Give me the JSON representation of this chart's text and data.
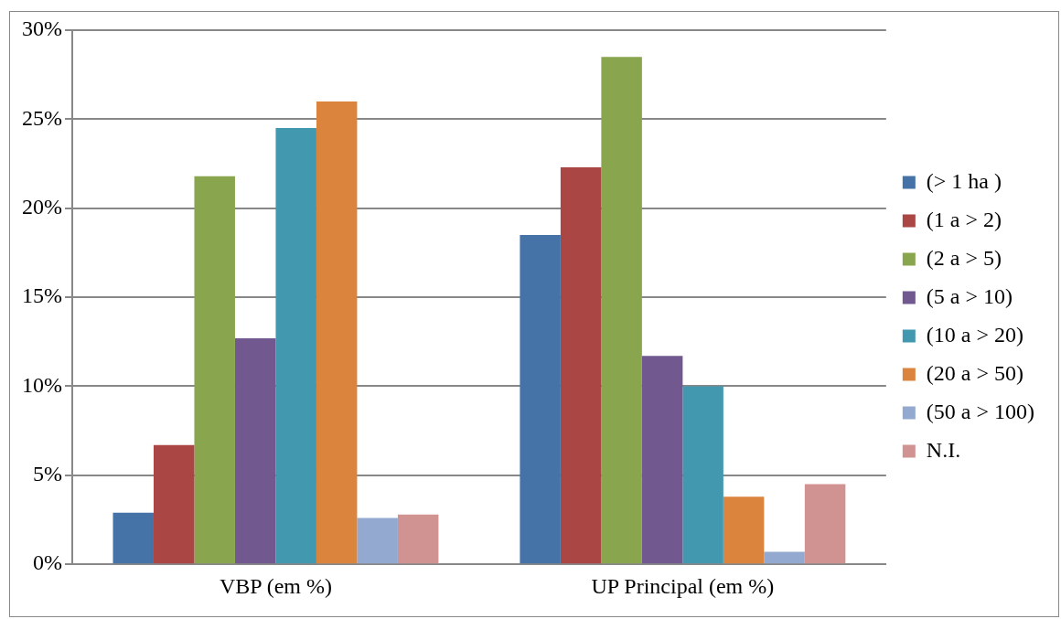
{
  "chart_data": {
    "type": "bar",
    "categories": [
      "VBP (em %)",
      "UP Principal (em %)"
    ],
    "series": [
      {
        "name": "(> 1 ha )",
        "color": "#4572a7",
        "values": [
          2.9,
          18.5
        ]
      },
      {
        "name": "(1 a > 2)",
        "color": "#aa4643",
        "values": [
          6.7,
          22.3
        ]
      },
      {
        "name": "(2 a > 5)",
        "color": "#89a54e",
        "values": [
          21.8,
          28.5
        ]
      },
      {
        "name": "(5 a > 10)",
        "color": "#71588f",
        "values": [
          12.7,
          11.7
        ]
      },
      {
        "name": "(10 a > 20)",
        "color": "#4198af",
        "values": [
          24.5,
          10.0
        ]
      },
      {
        "name": "(20 a > 50)",
        "color": "#db843d",
        "values": [
          26.0,
          3.8
        ]
      },
      {
        "name": "(50 a > 100)",
        "color": "#93a9cf",
        "values": [
          2.6,
          0.7
        ]
      },
      {
        "name": "N.I.",
        "color": "#d19392",
        "values": [
          2.8,
          4.5
        ]
      }
    ],
    "ylim": [
      0,
      30
    ],
    "yticks": [
      {
        "value": 0,
        "label": "0%"
      },
      {
        "value": 5,
        "label": "5%"
      },
      {
        "value": 10,
        "label": "10%"
      },
      {
        "value": 15,
        "label": "15%"
      },
      {
        "value": 20,
        "label": "20%"
      },
      {
        "value": 25,
        "label": "25%"
      },
      {
        "value": 30,
        "label": "30%"
      }
    ],
    "grid": "y",
    "legend": "right"
  }
}
